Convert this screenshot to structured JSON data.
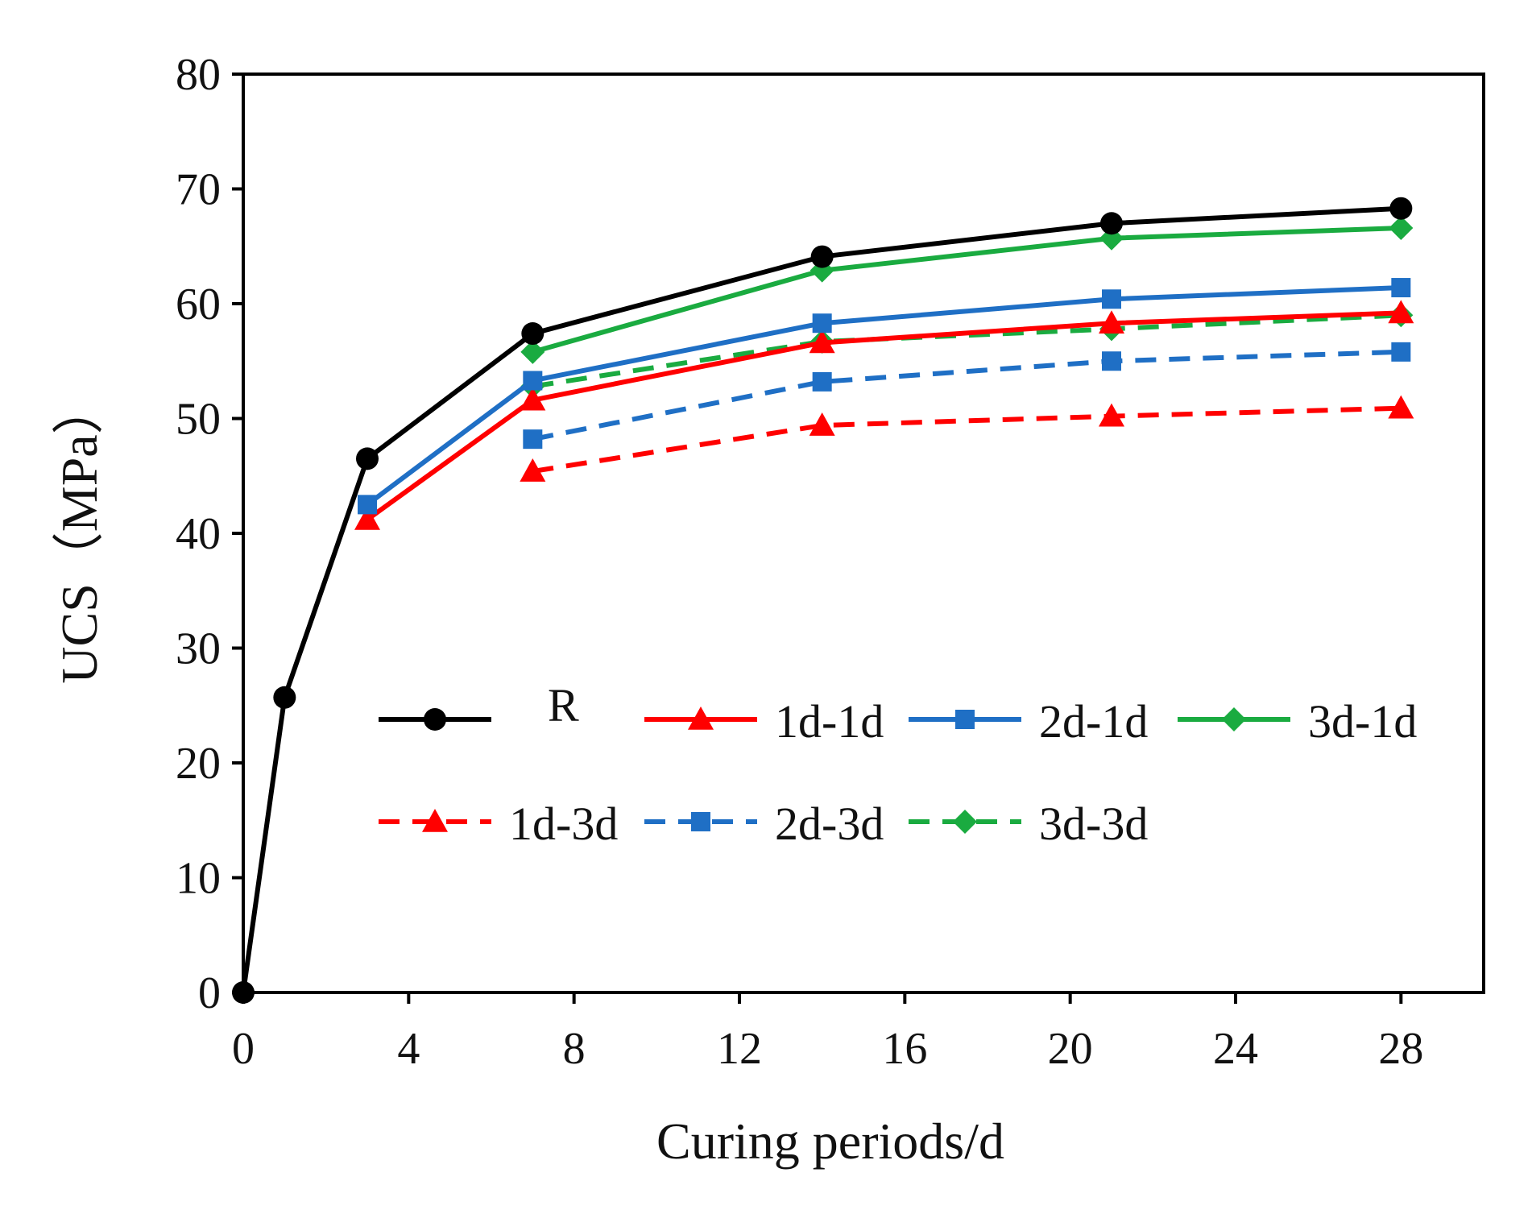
{
  "chart_data": {
    "type": "line",
    "title": "",
    "xlabel": "Curing periods/d",
    "ylabel": "UCS（MPa）",
    "xlim": [
      0,
      30
    ],
    "ylim": [
      0,
      80
    ],
    "xticks": [
      0,
      4,
      8,
      12,
      16,
      20,
      24,
      28
    ],
    "yticks": [
      0,
      10,
      20,
      30,
      40,
      50,
      60,
      70,
      80
    ],
    "grid": false,
    "legend_position": "center (inside plot, two rows)",
    "series": [
      {
        "name": "R",
        "color": "#000000",
        "dash": "solid",
        "marker": "circle",
        "x": [
          0,
          1,
          3,
          7,
          14,
          21,
          28
        ],
        "values": [
          0,
          25.7,
          46.5,
          57.4,
          64.1,
          67.0,
          68.3
        ]
      },
      {
        "name": "1d-1d",
        "color": "#ff0000",
        "dash": "solid",
        "marker": "triangle",
        "x": [
          3,
          7,
          14,
          21,
          28
        ],
        "values": [
          41.2,
          51.6,
          56.6,
          58.3,
          59.2
        ]
      },
      {
        "name": "2d-1d",
        "color": "#1f6fc5",
        "dash": "solid",
        "marker": "square",
        "x": [
          3,
          7,
          14,
          21,
          28
        ],
        "values": [
          42.5,
          53.3,
          58.3,
          60.4,
          61.4
        ]
      },
      {
        "name": "3d-1d",
        "color": "#1aab40",
        "dash": "solid",
        "marker": "diamond",
        "x": [
          7,
          14,
          21,
          28
        ],
        "values": [
          55.8,
          62.9,
          65.7,
          66.6
        ]
      },
      {
        "name": "1d-3d",
        "color": "#ff0000",
        "dash": "dashed",
        "marker": "triangle",
        "x": [
          7,
          14,
          21,
          28
        ],
        "values": [
          45.4,
          49.4,
          50.2,
          50.9
        ]
      },
      {
        "name": "2d-3d",
        "color": "#1f6fc5",
        "dash": "dashed",
        "marker": "square",
        "x": [
          7,
          14,
          21,
          28
        ],
        "values": [
          48.2,
          53.2,
          55.0,
          55.8
        ]
      },
      {
        "name": "3d-3d",
        "color": "#1aab40",
        "dash": "dashed",
        "marker": "diamond",
        "x": [
          7,
          14,
          21,
          28
        ],
        "values": [
          52.8,
          56.7,
          57.8,
          59.0
        ]
      }
    ]
  }
}
